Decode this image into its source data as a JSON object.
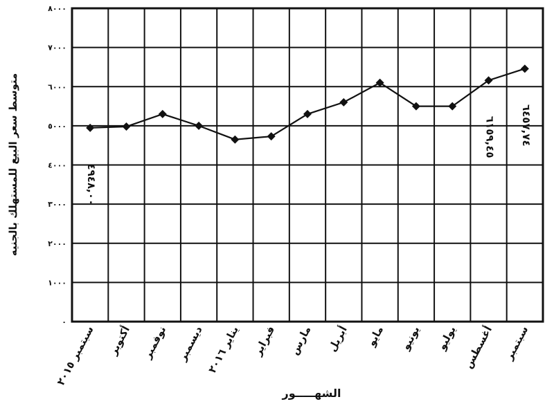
{
  "chart_data": {
    "type": "line",
    "title": "",
    "ylabel": "متوسط سعر البيع للمستهلك بالجنيه",
    "xlabel": "الشهـــــور",
    "ylim": [
      0,
      8000
    ],
    "yticks": [
      0,
      1000,
      2000,
      3000,
      4000,
      5000,
      6000,
      7000,
      8000
    ],
    "ytick_labels": [
      "٠",
      "١٠٠٠",
      "٢٠٠٠",
      "٣٠٠٠",
      "٤٠٠٠",
      "٥٠٠٠",
      "٦٠٠٠",
      "٧٠٠٠",
      "٨٠٠٠"
    ],
    "grid": true,
    "categories": [
      "سبتمبر ٢٠١٥",
      "أكتوبر",
      "نوفمبر",
      "ديسمبر",
      "يناير ٢٠١٦",
      "فبراير",
      "مارس",
      "أبريل",
      "مايو",
      "يونيو",
      "يوليو",
      "أغسطس",
      "سبتمبر"
    ],
    "series": [
      {
        "values": [
          4948,
          4980,
          5300,
          5000,
          4650,
          4730,
          5300,
          5600,
          6100,
          5500,
          5500,
          6159.45,
          6457.74
        ]
      }
    ],
    "annotations": [
      {
        "category_index": 0,
        "text": "٤٩٤٨,٠٠"
      },
      {
        "category_index": 11,
        "text": "٦١٥٩,٤٥"
      },
      {
        "category_index": 12,
        "text": "٦٤٥٧,٧٤"
      }
    ]
  }
}
